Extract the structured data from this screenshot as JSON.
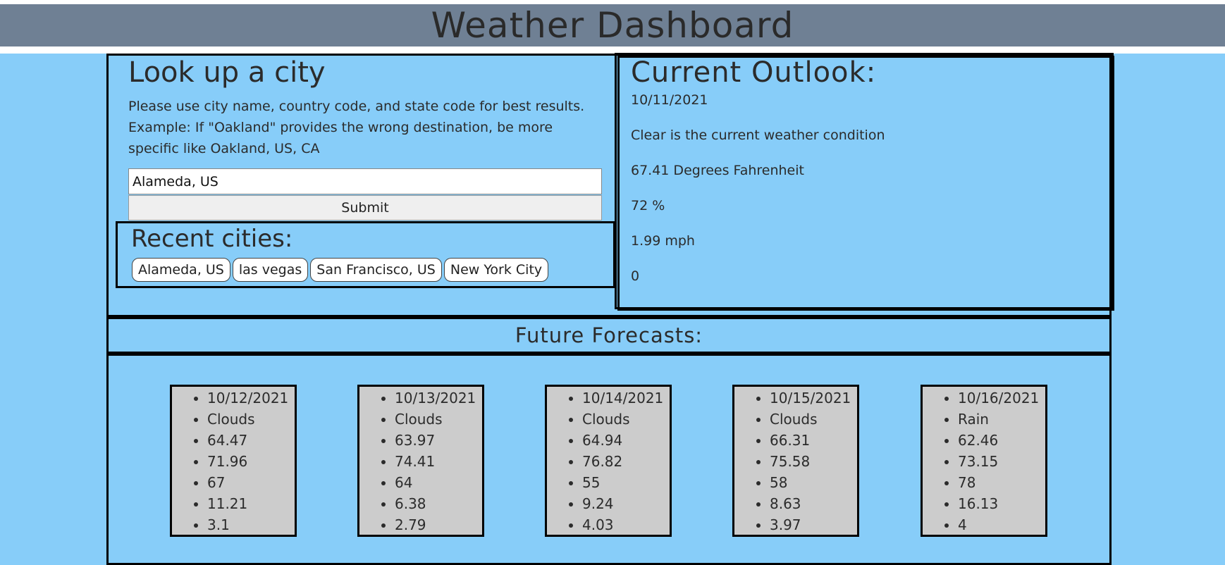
{
  "header": {
    "title": "Weather Dashboard"
  },
  "lookup": {
    "title": "Look up a city",
    "instructions": "Please use city name, country code, and state code for best results. Example: If \"Oakland\" provides the wrong destination, be more specific like Oakland, US, CA",
    "input_value": "Alameda, US",
    "submit_label": "Submit"
  },
  "recent": {
    "title": "Recent cities:",
    "cities": [
      "Alameda, US",
      "las vegas",
      "San Francisco, US",
      "New York City"
    ]
  },
  "outlook": {
    "title": "Current Outlook:",
    "date": "10/11/2021",
    "condition": "Clear is the current weather condition",
    "temperature": "67.41 Degrees Fahrenheit",
    "humidity": "72 %",
    "wind": "1.99 mph",
    "uv": "0"
  },
  "future": {
    "title": "Future Forecasts:",
    "cards": [
      [
        "10/12/2021",
        "Clouds",
        "64.47",
        "71.96",
        "67",
        "11.21",
        "3.1"
      ],
      [
        "10/13/2021",
        "Clouds",
        "63.97",
        "74.41",
        "64",
        "6.38",
        "2.79"
      ],
      [
        "10/14/2021",
        "Clouds",
        "64.94",
        "76.82",
        "55",
        "9.24",
        "4.03"
      ],
      [
        "10/15/2021",
        "Clouds",
        "66.31",
        "75.58",
        "58",
        "8.63",
        "3.97"
      ],
      [
        "10/16/2021",
        "Rain",
        "62.46",
        "73.15",
        "78",
        "16.13",
        "4"
      ]
    ]
  }
}
